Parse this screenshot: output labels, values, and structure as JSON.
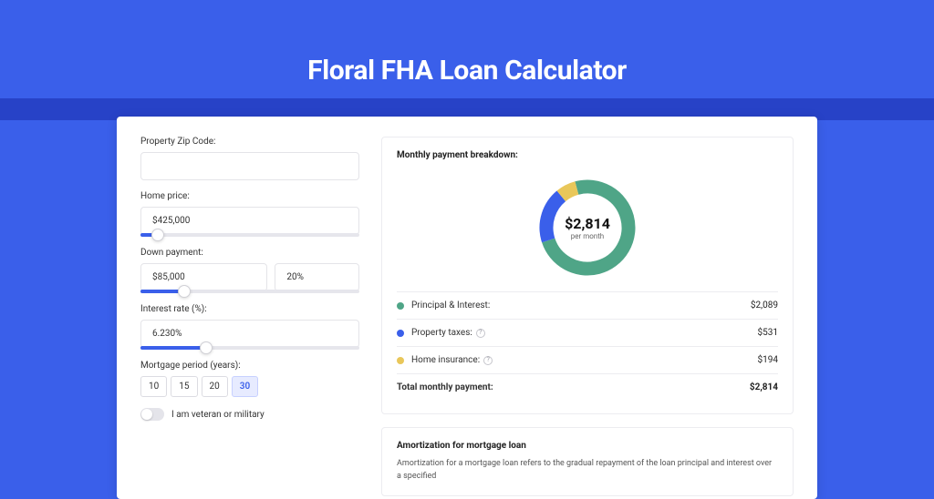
{
  "page": {
    "title": "Floral FHA Loan Calculator",
    "accent_color": "#3a5fea",
    "stripe_color": "#2742c7"
  },
  "form": {
    "zip": {
      "label": "Property Zip Code:",
      "value": ""
    },
    "home_price": {
      "label": "Home price:",
      "value": "$425,000",
      "slider_pct": 8
    },
    "down_payment": {
      "label": "Down payment:",
      "amount": "$85,000",
      "percent": "20%",
      "slider_pct": 20
    },
    "interest_rate": {
      "label": "Interest rate (%):",
      "value": "6.230%",
      "slider_pct": 30
    },
    "period": {
      "label": "Mortgage period (years):",
      "options": [
        "10",
        "15",
        "20",
        "30"
      ],
      "selected": "30"
    },
    "veteran": {
      "label": "I am veteran or military",
      "checked": false
    }
  },
  "breakdown": {
    "title": "Monthly payment breakdown:",
    "center_value": "$2,814",
    "center_sub": "per month",
    "items": [
      {
        "label": "Principal & Interest:",
        "value": "$2,089",
        "color": "#4fa587",
        "pct": 74,
        "help": false
      },
      {
        "label": "Property taxes:",
        "value": "$531",
        "color": "#3a5fea",
        "pct": 19,
        "help": true
      },
      {
        "label": "Home insurance:",
        "value": "$194",
        "color": "#e9c75a",
        "pct": 7,
        "help": true
      }
    ],
    "total_label": "Total monthly payment:",
    "total_value": "$2,814",
    "donut": {
      "track_color": "#ffffff",
      "stroke_width": 15
    }
  },
  "amortization": {
    "title": "Amortization for mortgage loan",
    "text": "Amortization for a mortgage loan refers to the gradual repayment of the loan principal and interest over a specified"
  }
}
